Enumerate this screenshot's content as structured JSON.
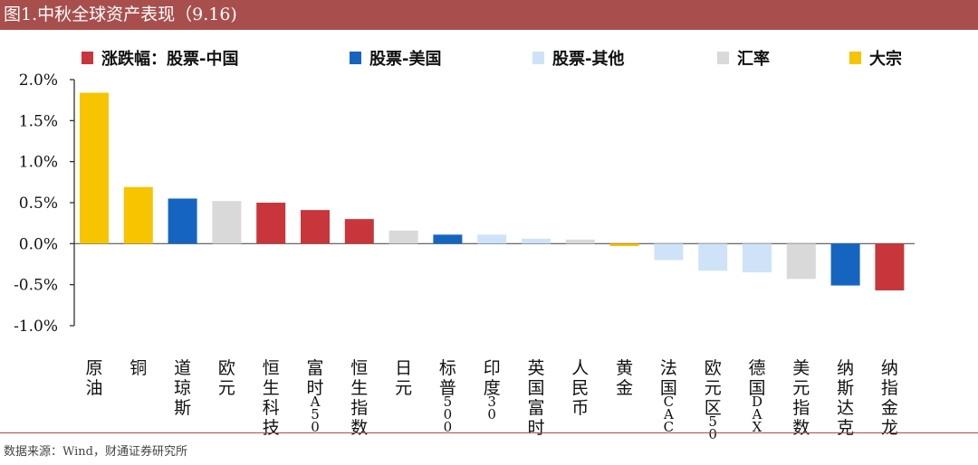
{
  "title": "图1.中秋全球资产表现（9.16)",
  "source": "数据来源：Wind，财通证券研究所",
  "colors": {
    "header_bg": "#a84f4d",
    "china_equity": "#c8363c",
    "us_equity": "#1565c0",
    "other_equity": "#cfe3f8",
    "fx": "#d9d9d9",
    "commodity": "#f7c400"
  },
  "chart_data": {
    "type": "bar",
    "title": "",
    "ylim": [
      -1.0,
      2.0
    ],
    "yticks": [
      "-1.0%",
      "-0.5%",
      "0.0%",
      "0.5%",
      "1.0%",
      "1.5%",
      "2.0%"
    ],
    "grid": false,
    "legend_position": "top",
    "legend": [
      {
        "label": "涨跌幅：股票-中国",
        "group": "china_equity"
      },
      {
        "label": "股票-美国",
        "group": "us_equity"
      },
      {
        "label": "股票-其他",
        "group": "other_equity"
      },
      {
        "label": "汇率",
        "group": "fx"
      },
      {
        "label": "大宗",
        "group": "commodity"
      }
    ],
    "categories": [
      "原油",
      "铜",
      "道琼斯",
      "欧元",
      "恒生科技",
      "富时A50",
      "恒生指数",
      "日元",
      "标普500",
      "印度30",
      "英国富时",
      "人民币",
      "黄金",
      "法国CAC",
      "欧元区50",
      "德国DAX",
      "美元指数",
      "纳斯达克",
      "纳指金龙"
    ],
    "groups": [
      "commodity",
      "commodity",
      "us_equity",
      "fx",
      "china_equity",
      "china_equity",
      "china_equity",
      "fx",
      "us_equity",
      "other_equity",
      "other_equity",
      "fx",
      "commodity",
      "other_equity",
      "other_equity",
      "other_equity",
      "fx",
      "us_equity",
      "china_equity"
    ],
    "values": [
      1.84,
      0.69,
      0.55,
      0.52,
      0.5,
      0.41,
      0.3,
      0.16,
      0.11,
      0.11,
      0.06,
      0.05,
      -0.03,
      -0.2,
      -0.33,
      -0.35,
      -0.43,
      -0.51,
      -0.57
    ]
  }
}
